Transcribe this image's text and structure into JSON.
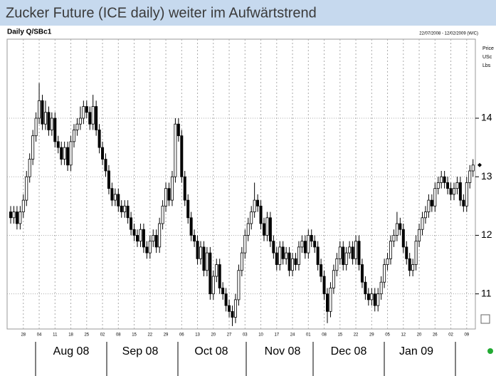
{
  "chart_data": {
    "type": "candlestick",
    "title": "Zucker Future (ICE daily) weiter im Aufwärtstrend",
    "subtitle": "Daily Q/SBc1",
    "date_range": "22/07/2008 - 12/02/2009 (W/C)",
    "axis_units": [
      "Price",
      "USc",
      "Lbs"
    ],
    "months": [
      "Aug 08",
      "Sep 08",
      "Oct 08",
      "Nov 08",
      "Dec 08",
      "Jan 09"
    ],
    "up_color": "#ffffff",
    "down_color": "#000000",
    "ylim": [
      10.4,
      15.35
    ],
    "yticks": [
      11,
      12,
      13,
      14
    ],
    "grid": true,
    "xlim": [
      -0.5,
      146.5
    ],
    "xticks": [
      {
        "value": 4,
        "label": "28"
      },
      {
        "value": 9,
        "label": "04"
      },
      {
        "value": 14,
        "label": "11"
      },
      {
        "value": 19,
        "label": "18"
      },
      {
        "value": 24,
        "label": "25"
      },
      {
        "value": 29,
        "label": "02"
      },
      {
        "value": 34,
        "label": "08"
      },
      {
        "value": 39,
        "label": "15"
      },
      {
        "value": 44,
        "label": "22"
      },
      {
        "value": 49,
        "label": "29"
      },
      {
        "value": 54,
        "label": "06"
      },
      {
        "value": 59,
        "label": "13"
      },
      {
        "value": 64,
        "label": "20"
      },
      {
        "value": 69,
        "label": "27"
      },
      {
        "value": 74,
        "label": "03"
      },
      {
        "value": 79,
        "label": "10"
      },
      {
        "value": 84,
        "label": "17"
      },
      {
        "value": 89,
        "label": "24"
      },
      {
        "value": 94,
        "label": "01"
      },
      {
        "value": 99,
        "label": "08"
      },
      {
        "value": 104,
        "label": "15"
      },
      {
        "value": 109,
        "label": "22"
      },
      {
        "value": 114,
        "label": "29"
      },
      {
        "value": 119,
        "label": "05"
      },
      {
        "value": 124,
        "label": "12"
      },
      {
        "value": 129,
        "label": "20"
      },
      {
        "value": 134,
        "label": "26"
      },
      {
        "value": 139,
        "label": "02"
      },
      {
        "value": 144,
        "label": "09"
      }
    ],
    "open": [
      12.4,
      12.3,
      12.4,
      12.2,
      12.4,
      12.6,
      13.0,
      13.3,
      13.7,
      14.0,
      14.3,
      13.9,
      14.1,
      13.8,
      14.0,
      13.6,
      13.5,
      13.3,
      13.5,
      13.2,
      13.6,
      13.8,
      13.9,
      14.0,
      14.2,
      14.1,
      13.9,
      14.2,
      13.8,
      13.5,
      13.3,
      13.1,
      12.8,
      12.6,
      12.7,
      12.5,
      12.4,
      12.5,
      12.3,
      12.1,
      12.0,
      11.9,
      12.1,
      11.8,
      11.7,
      11.9,
      12.0,
      11.8,
      12.2,
      12.5,
      12.8,
      12.6,
      13.0,
      13.9,
      13.7,
      13.0,
      12.6,
      12.3,
      12.0,
      11.9,
      11.6,
      11.8,
      11.4,
      11.7,
      11.0,
      11.3,
      11.5,
      11.1,
      11.0,
      10.8,
      10.7,
      10.6,
      10.9,
      11.4,
      11.7,
      12.0,
      12.2,
      12.4,
      12.6,
      12.5,
      12.2,
      12.0,
      12.3,
      11.9,
      11.7,
      11.5,
      11.8,
      11.6,
      11.7,
      11.4,
      11.6,
      11.5,
      11.8,
      11.9,
      11.7,
      12.0,
      11.9,
      11.8,
      11.5,
      11.3,
      11.0,
      10.7,
      11.1,
      11.4,
      11.6,
      11.8,
      11.5,
      11.7,
      11.8,
      11.6,
      11.9,
      11.5,
      11.2,
      11.0,
      10.9,
      11.0,
      10.8,
      11.0,
      11.2,
      11.5,
      11.6,
      11.9,
      12.0,
      12.2,
      12.1,
      11.8,
      11.6,
      11.4,
      11.5,
      11.9,
      12.1,
      12.3,
      12.4,
      12.6,
      12.5,
      12.8,
      12.9,
      13.0,
      12.9,
      12.8,
      12.7,
      12.8,
      12.9,
      12.6,
      12.5,
      12.9,
      13.1
    ],
    "high": [
      12.5,
      12.5,
      12.5,
      12.5,
      12.7,
      13.1,
      13.4,
      13.8,
      14.1,
      14.6,
      14.4,
      14.3,
      14.2,
      14.1,
      14.1,
      13.7,
      13.6,
      13.6,
      13.6,
      13.7,
      13.9,
      14.0,
      14.2,
      14.3,
      14.3,
      14.2,
      14.4,
      14.3,
      13.9,
      13.6,
      13.4,
      13.2,
      12.9,
      12.8,
      12.8,
      12.6,
      12.6,
      12.6,
      12.4,
      12.2,
      12.1,
      12.2,
      12.2,
      11.9,
      12.0,
      12.1,
      12.1,
      12.3,
      12.6,
      12.9,
      12.9,
      13.1,
      14.0,
      14.0,
      13.8,
      13.1,
      12.7,
      12.4,
      12.1,
      12.0,
      11.9,
      11.9,
      11.8,
      11.8,
      11.4,
      11.6,
      11.6,
      11.2,
      11.1,
      10.9,
      10.8,
      11.0,
      11.5,
      11.8,
      12.1,
      12.3,
      12.5,
      12.9,
      12.7,
      12.6,
      12.3,
      12.4,
      12.4,
      12.0,
      11.8,
      11.9,
      11.9,
      11.8,
      11.8,
      11.7,
      11.7,
      11.9,
      12.0,
      12.0,
      12.1,
      12.1,
      12.0,
      11.9,
      11.6,
      11.4,
      11.1,
      11.2,
      11.5,
      11.7,
      11.9,
      11.9,
      11.8,
      11.9,
      11.9,
      12.0,
      12.0,
      11.6,
      11.3,
      11.1,
      11.1,
      11.1,
      11.1,
      11.3,
      11.6,
      11.7,
      12.0,
      12.1,
      12.4,
      12.3,
      12.2,
      11.9,
      11.7,
      11.6,
      12.0,
      12.2,
      12.4,
      12.5,
      12.7,
      12.7,
      12.9,
      13.0,
      13.1,
      13.1,
      13.0,
      12.9,
      12.9,
      13.0,
      13.0,
      12.7,
      13.0,
      13.2,
      13.3
    ],
    "low": [
      12.2,
      12.2,
      12.1,
      12.1,
      12.3,
      12.5,
      12.9,
      13.2,
      13.6,
      13.9,
      13.8,
      13.8,
      13.7,
      13.7,
      13.5,
      13.4,
      13.2,
      13.2,
      13.1,
      13.1,
      13.5,
      13.7,
      13.8,
      13.9,
      14.0,
      13.8,
      13.8,
      13.7,
      13.4,
      13.2,
      13.0,
      12.7,
      12.5,
      12.5,
      12.4,
      12.3,
      12.3,
      12.2,
      12.0,
      11.9,
      11.8,
      11.8,
      11.7,
      11.6,
      11.6,
      11.8,
      11.7,
      11.7,
      12.1,
      12.4,
      12.5,
      12.5,
      12.9,
      13.6,
      12.9,
      12.5,
      12.2,
      11.9,
      11.8,
      11.5,
      11.5,
      11.3,
      11.3,
      10.9,
      10.9,
      11.2,
      11.0,
      10.9,
      10.7,
      10.6,
      10.45,
      10.5,
      10.8,
      11.3,
      11.6,
      11.9,
      12.1,
      12.3,
      12.4,
      12.1,
      11.9,
      11.9,
      11.8,
      11.6,
      11.4,
      11.4,
      11.5,
      11.5,
      11.3,
      11.3,
      11.4,
      11.4,
      11.7,
      11.6,
      11.6,
      11.8,
      11.7,
      11.4,
      11.2,
      10.9,
      10.5,
      10.6,
      11.0,
      11.3,
      11.5,
      11.4,
      11.4,
      11.6,
      11.5,
      11.5,
      11.4,
      11.1,
      10.9,
      10.8,
      10.8,
      10.7,
      10.7,
      10.9,
      11.1,
      11.4,
      11.5,
      11.8,
      11.9,
      12.0,
      11.7,
      11.5,
      11.3,
      11.3,
      11.4,
      11.8,
      12.0,
      12.2,
      12.3,
      12.4,
      12.4,
      12.7,
      12.8,
      12.8,
      12.7,
      12.6,
      12.6,
      12.7,
      12.5,
      12.4,
      12.4,
      12.8,
      13.0
    ],
    "close": [
      12.3,
      12.4,
      12.2,
      12.4,
      12.6,
      13.0,
      13.3,
      13.7,
      14.0,
      14.3,
      13.9,
      14.1,
      13.8,
      14.0,
      13.6,
      13.5,
      13.3,
      13.5,
      13.2,
      13.6,
      13.8,
      13.9,
      14.0,
      14.2,
      14.1,
      13.9,
      14.2,
      13.8,
      13.5,
      13.3,
      13.1,
      12.8,
      12.6,
      12.7,
      12.5,
      12.4,
      12.5,
      12.3,
      12.1,
      12.0,
      11.9,
      12.1,
      11.8,
      11.7,
      11.9,
      12.0,
      11.8,
      12.2,
      12.5,
      12.8,
      12.6,
      13.0,
      13.9,
      13.7,
      13.0,
      12.6,
      12.3,
      12.0,
      11.9,
      11.6,
      11.8,
      11.4,
      11.7,
      11.0,
      11.3,
      11.5,
      11.1,
      11.0,
      10.8,
      10.7,
      10.6,
      10.9,
      11.4,
      11.7,
      12.0,
      12.2,
      12.4,
      12.6,
      12.5,
      12.2,
      12.0,
      12.3,
      11.9,
      11.7,
      11.5,
      11.8,
      11.6,
      11.7,
      11.4,
      11.6,
      11.5,
      11.8,
      11.9,
      11.7,
      12.0,
      11.9,
      11.8,
      11.5,
      11.3,
      11.0,
      10.7,
      11.1,
      11.4,
      11.6,
      11.8,
      11.5,
      11.7,
      11.8,
      11.6,
      11.9,
      11.5,
      11.2,
      11.0,
      10.9,
      11.0,
      10.8,
      11.0,
      11.2,
      11.5,
      11.6,
      11.9,
      12.0,
      12.2,
      12.1,
      11.8,
      11.6,
      11.4,
      11.5,
      11.9,
      12.1,
      12.3,
      12.4,
      12.6,
      12.5,
      12.8,
      12.9,
      13.0,
      12.9,
      12.8,
      12.7,
      12.8,
      12.9,
      12.6,
      12.5,
      12.9,
      13.1,
      13.2
    ]
  }
}
